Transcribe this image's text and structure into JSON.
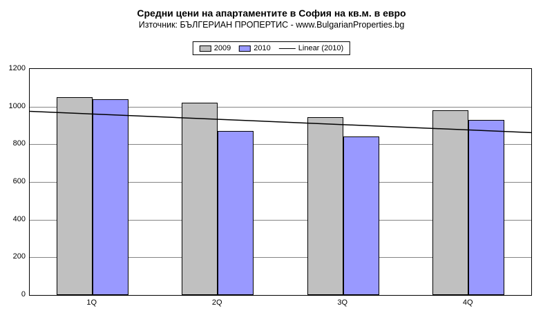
{
  "chart_data": {
    "type": "bar",
    "title": "Средни цени на апартаментите в София на кв.м. в евро",
    "subtitle": "Източник: БЪЛГЕРИАН ПРОПЕРТИС - www.BulgarianProperties.bg",
    "categories": [
      "1Q",
      "2Q",
      "3Q",
      "4Q"
    ],
    "series": [
      {
        "name": "2009",
        "color": "#c0c0c0",
        "values": [
          1050,
          1020,
          945,
          980
        ]
      },
      {
        "name": "2010",
        "color": "#9999ff",
        "values": [
          1040,
          870,
          840,
          930
        ]
      }
    ],
    "trend": {
      "name": "Linear (2010)",
      "color": "#000000",
      "start_value": 975,
      "end_value": 862
    },
    "xlabel": "",
    "ylabel": "",
    "ymin": 0,
    "ymax": 1200,
    "yticks": [
      0,
      200,
      400,
      600,
      800,
      1000,
      1200
    ],
    "grid": true,
    "legend_position": "top",
    "plot_background": "#ffffff",
    "gridline_color": "#848484"
  }
}
